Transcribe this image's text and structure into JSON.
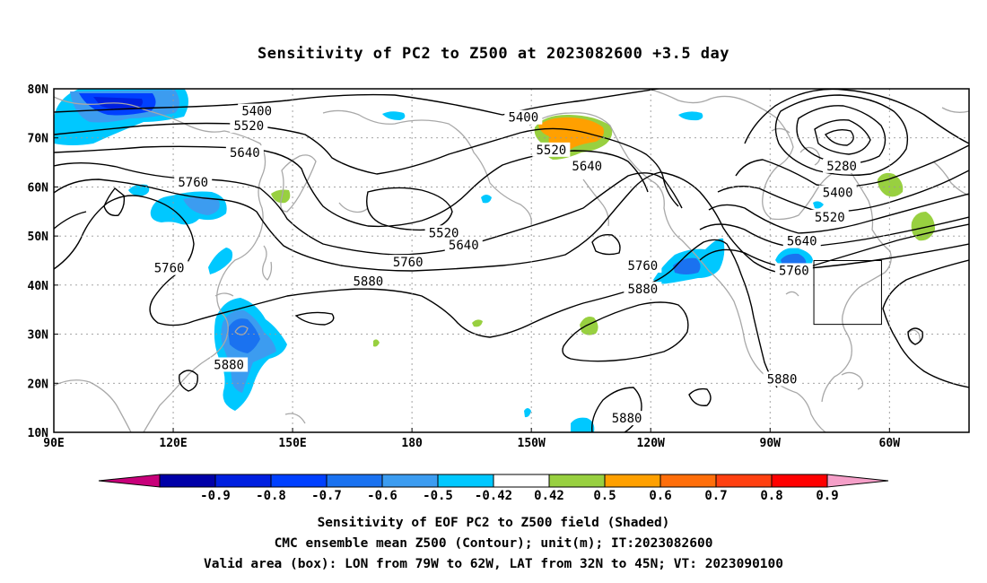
{
  "title": "Sensitivity of PC2 to Z500 at 2023082600 +3.5 day",
  "map": {
    "lat_labels": [
      "80N",
      "70N",
      "60N",
      "50N",
      "40N",
      "30N",
      "20N",
      "10N"
    ],
    "lon_labels": [
      "90E",
      "120E",
      "150E",
      "180",
      "150W",
      "120W",
      "90W",
      "60W"
    ],
    "contour_labels": [
      {
        "text": "5400",
        "lon": 141,
        "lat": 75.5
      },
      {
        "text": "5400",
        "lon": -152,
        "lat": 74.2
      },
      {
        "text": "5520",
        "lon": 139,
        "lat": 72.5
      },
      {
        "text": "5520",
        "lon": -145,
        "lat": 67.6
      },
      {
        "text": "5640",
        "lon": 138,
        "lat": 67.0
      },
      {
        "text": "5640",
        "lon": -136,
        "lat": 64.3
      },
      {
        "text": "5760",
        "lon": 125,
        "lat": 61.0
      },
      {
        "text": "5760",
        "lon": 119,
        "lat": 43.5
      },
      {
        "text": "5520",
        "lon": -172,
        "lat": 50.7
      },
      {
        "text": "5640",
        "lon": -167,
        "lat": 48.2
      },
      {
        "text": "5760",
        "lon": -181,
        "lat": 44.7
      },
      {
        "text": "5880",
        "lon": -191,
        "lat": 40.8
      },
      {
        "text": "5880",
        "lon": 134,
        "lat": 23.8
      },
      {
        "text": "5760",
        "lon": -122,
        "lat": 44.0
      },
      {
        "text": "5880",
        "lon": -122,
        "lat": 39.2
      },
      {
        "text": "5280",
        "lon": -72,
        "lat": 64.3
      },
      {
        "text": "5400",
        "lon": -73,
        "lat": 58.9
      },
      {
        "text": "5520",
        "lon": -75,
        "lat": 53.9
      },
      {
        "text": "5640",
        "lon": -82,
        "lat": 49.0
      },
      {
        "text": "5760",
        "lon": -84,
        "lat": 43.0
      },
      {
        "text": "5880",
        "lon": -87,
        "lat": 20.9
      },
      {
        "text": "5880",
        "lon": -126,
        "lat": 12.9
      }
    ]
  },
  "valid_box": {
    "lon_min": -79,
    "lon_max": -62,
    "lat_min": 32,
    "lat_max": 45
  },
  "colorbar": {
    "colors": [
      "#c8007a",
      "#0000a8",
      "#0020e0",
      "#0040ff",
      "#1a72f0",
      "#3c9cf0",
      "#00c8ff",
      "#ffffff",
      "#98d040",
      "#ffa000",
      "#ff6e0a",
      "#ff4010",
      "#ff0000",
      "#f59fc8"
    ],
    "labels": [
      "-0.9",
      "-0.8",
      "-0.7",
      "-0.6",
      "-0.5",
      "-0.42",
      "0.42",
      "0.5",
      "0.6",
      "0.7",
      "0.8",
      "0.9"
    ]
  },
  "caption": {
    "line1": "Sensitivity of EOF PC2 to Z500 field (Shaded)",
    "line2": "CMC ensemble mean Z500 (Contour); unit(m); IT:2023082600",
    "line3": "Valid area (box): LON from 79W to 62W, LAT from 32N to 45N; VT: 2023090100"
  }
}
